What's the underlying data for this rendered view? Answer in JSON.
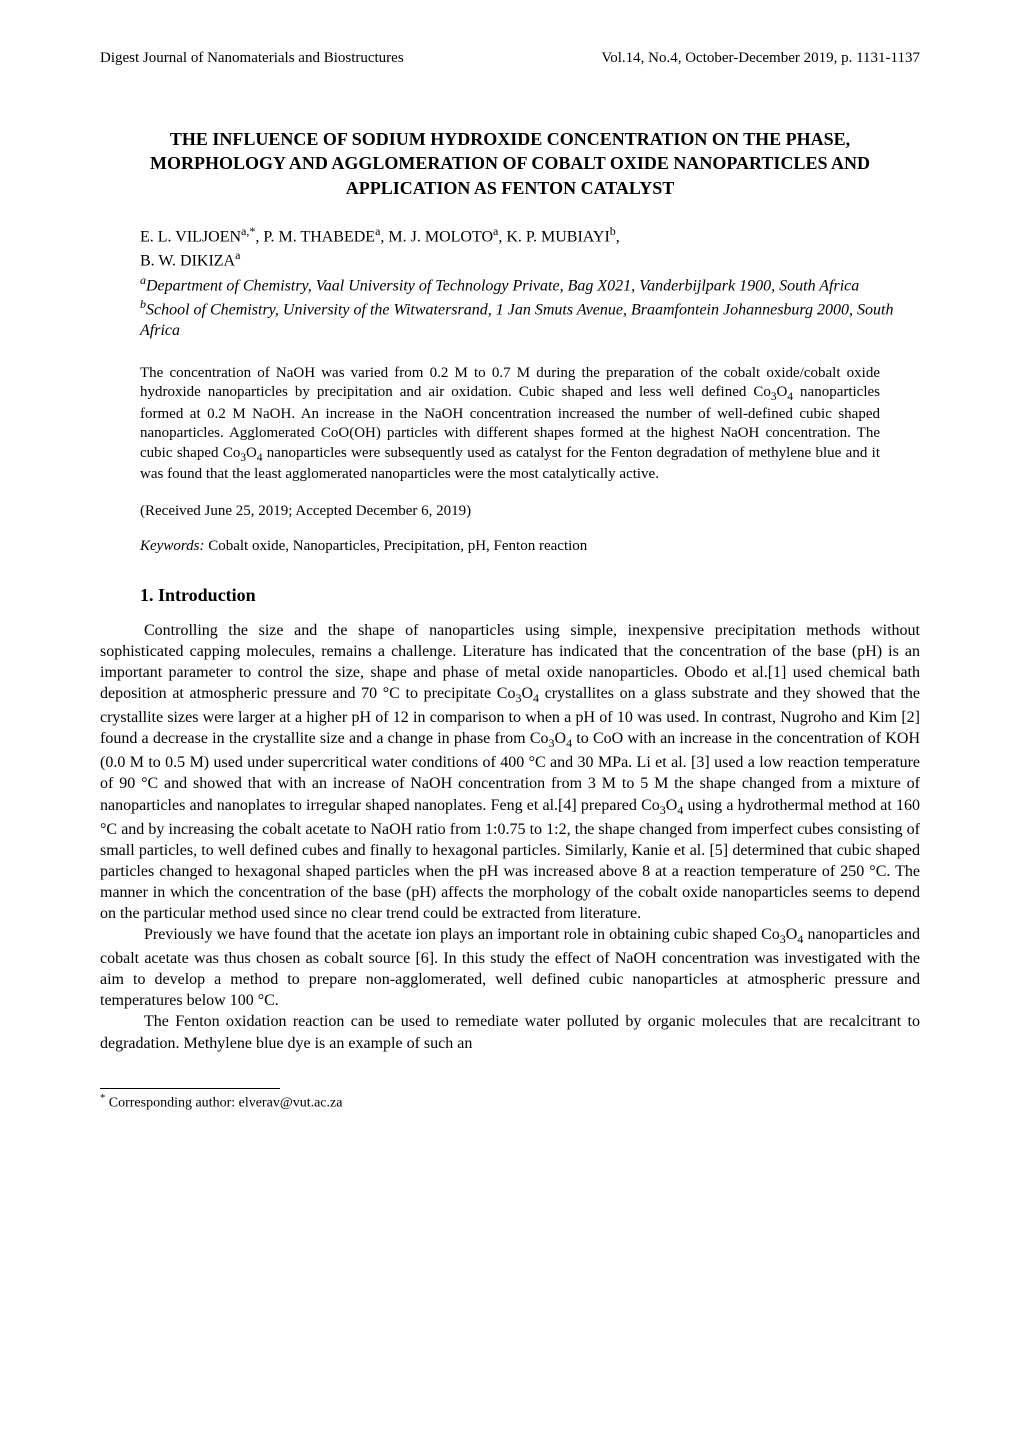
{
  "running_header": {
    "left": "Digest Journal of Nanomaterials and Biostructures",
    "right": "Vol.14, No.4, October-December 2019, p. 1131-1137"
  },
  "title": "THE INFLUENCE OF SODIUM HYDROXIDE CONCENTRATION ON THE PHASE, MORPHOLOGY AND AGGLOMERATION OF COBALT OXIDE NANOPARTICLES AND APPLICATION AS FENTON CATALYST",
  "authors_line1_pre": "E. L. VILJOEN",
  "authors_line1_sup1": "a,*",
  "authors_line1_mid1": ", P. M. THABEDE",
  "authors_line1_sup2": "a",
  "authors_line1_mid2": ", M. J. MOLOTO",
  "authors_line1_sup3": "a",
  "authors_line1_mid3": ", K. P. MUBIAYI",
  "authors_line1_sup4": "b",
  "authors_line1_end": ",",
  "authors_line2_pre": "B. W. DIKIZA",
  "authors_line2_sup": "a",
  "affil_a_sup": "a",
  "affil_a": "Department of Chemistry, Vaal University of Technology Private, Bag X021, Vanderbijlpark 1900, South Africa",
  "affil_b_sup": "b",
  "affil_b": "School of Chemistry, University of the Witwatersrand, 1 Jan Smuts Avenue, Braamfontein Johannesburg 2000, South Africa",
  "abstract_p1": "The concentration of NaOH was varied from 0.2 M to 0.7 M during the preparation of the cobalt oxide/cobalt oxide hydroxide nanoparticles by precipitation and air oxidation. Cubic shaped and less well defined Co",
  "abstract_p2": " nanoparticles formed at 0.2 M NaOH.  An increase in the NaOH concentration increased the number of well-defined cubic shaped nanoparticles.  Agglomerated CoO(OH) particles with different shapes formed at the highest NaOH concentration.  The cubic shaped Co",
  "abstract_p3": " nanoparticles were subsequently used as catalyst for the Fenton degradation of methylene blue and it was found that the least agglomerated nanoparticles were the most catalytically active.",
  "sub34a": "3",
  "sub34b": "4",
  "dates": "(Received June 25, 2019; Accepted December 6, 2019)",
  "keywords_label": "Keywords:",
  "keywords": " Cobalt oxide, Nanoparticles, Precipitation, pH, Fenton reaction",
  "section1": "1. Introduction",
  "intro_p1a": "Controlling the size and the shape of nanoparticles using simple, inexpensive precipitation methods without sophisticated capping molecules, remains a challenge. Literature has indicated that the concentration of the base (pH) is an important parameter to control the size, shape and phase of metal oxide nanoparticles. Obodo et al.[1] used chemical bath deposition at atmospheric pressure and 70 °C to precipitate Co",
  "intro_p1b": " crystallites on a glass substrate and they showed that the crystallite sizes were larger at a higher pH of 12 in comparison to when a pH of 10 was used. In contrast, Nugroho and Kim [2] found a decrease in the crystallite size and a change in phase from Co",
  "intro_p1c": " to CoO with an increase in the concentration of KOH (0.0 M to 0.5 M) used under supercritical water conditions of 400 °C and 30 MPa.  Li et al. [3] used a low reaction temperature of 90 °C and showed that with an increase of NaOH concentration from 3 M to 5 M the shape changed from a mixture of nanoparticles and nanoplates to irregular shaped nanoplates. Feng et al.[4] prepared Co",
  "intro_p1d": " using a hydrothermal method at 160 °C and by increasing the cobalt acetate to NaOH ratio from  1:0.75 to 1:2, the shape changed from imperfect cubes consisting of small particles, to well defined cubes and finally to hexagonal particles. Similarly, Kanie et al. [5] determined that cubic shaped particles changed to hexagonal shaped particles when the pH was increased above 8 at a reaction temperature of 250 °C.  The manner in which the concentration of the base (pH) affects the morphology of the cobalt oxide nanoparticles seems to depend on the particular method used since no clear trend could be extracted from literature.",
  "intro_p2a": "Previously we have found that the acetate ion plays an important role in obtaining cubic shaped Co",
  "intro_p2b": " nanoparticles and cobalt acetate was thus chosen as cobalt source [6].  In this study the effect of NaOH concentration was investigated with the aim to develop a method to prepare non-agglomerated, well defined cubic nanoparticles at atmospheric pressure and temperatures below 100 °C.",
  "intro_p3": "The Fenton oxidation reaction can be used to remediate water polluted by organic molecules that are recalcitrant to degradation. Methylene blue dye is an example of such an",
  "footnote_marker": "*",
  "footnote_text": " Corresponding author: elverav@vut.ac.za",
  "O_label": "O"
}
